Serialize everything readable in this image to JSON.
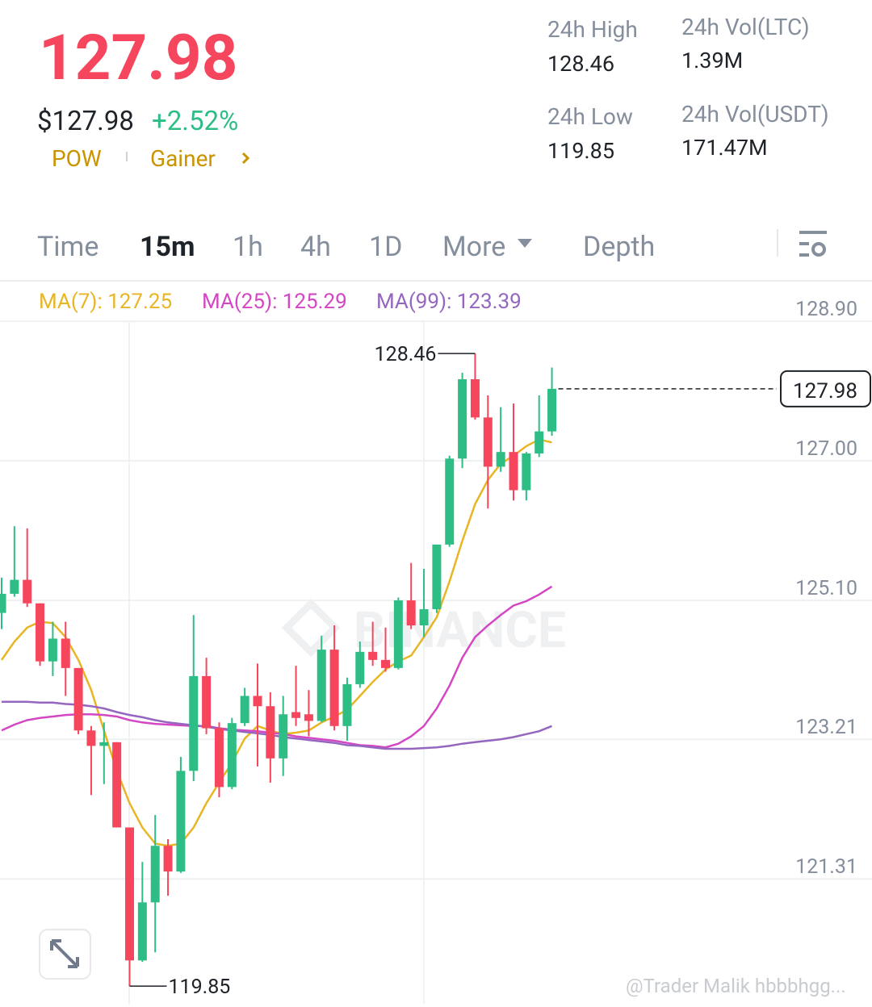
{
  "header": {
    "price": "127.98",
    "usd_price": "$127.98",
    "change": "+2.52%",
    "tags": [
      "POW",
      "Gainer"
    ],
    "stats": [
      {
        "label": "24h High",
        "value": "128.46"
      },
      {
        "label": "24h Vol(LTC)",
        "value": "1.39M"
      },
      {
        "label": "24h Low",
        "value": "119.85"
      },
      {
        "label": "24h Vol(USDT)",
        "value": "171.47M"
      }
    ]
  },
  "tabs": {
    "items": [
      "Time",
      "15m",
      "1h",
      "4h",
      "1D",
      "More",
      "Depth"
    ],
    "active": 1
  },
  "watermark": "BINANCE",
  "credit": "@Trader Malik hbbbhgg...",
  "chart_data": {
    "type": "candlestick",
    "up_color": "#2ebd85",
    "down_color": "#f6465d",
    "open": [
      124.93,
      125.19,
      125.38,
      125.06,
      124.27,
      124.58,
      124.18,
      123.33,
      123.12,
      123.17,
      122.01,
      120.2,
      120.99,
      121.76,
      121.41,
      122.78,
      124.07,
      123.36,
      122.56,
      123.43,
      123.8,
      123.66,
      122.95,
      123.58,
      123.55,
      123.46,
      124.43,
      123.39,
      123.96,
      124.4,
      124.29,
      124.18,
      125.1,
      124.76,
      124.98,
      125.86,
      127.03,
      128.11,
      127.59,
      126.92,
      127.12,
      126.6,
      127.1,
      127.4
    ],
    "high": [
      125.41,
      126.11,
      126.08,
      125.06,
      124.81,
      124.81,
      124.18,
      123.39,
      123.44,
      123.17,
      122.01,
      121.54,
      122.18,
      121.85,
      122.97,
      124.9,
      124.32,
      123.44,
      123.5,
      123.91,
      124.24,
      123.85,
      123.8,
      124.21,
      123.88,
      124.62,
      124.76,
      124.05,
      124.54,
      124.81,
      124.73,
      125.14,
      125.61,
      125.53,
      125.86,
      127.07,
      128.2,
      128.46,
      127.89,
      127.73,
      127.78,
      127.12,
      127.89,
      128.27
    ],
    "low": [
      124.71,
      125.15,
      125.01,
      124.21,
      124.07,
      123.8,
      123.28,
      122.45,
      122.6,
      122.01,
      119.85,
      120.18,
      120.31,
      121.08,
      121.39,
      122.64,
      123.28,
      122.42,
      122.53,
      123.39,
      122.84,
      122.62,
      122.71,
      123.39,
      123.25,
      123.44,
      123.33,
      123.19,
      123.91,
      124.21,
      124.13,
      124.16,
      124.71,
      124.6,
      124.93,
      125.83,
      126.9,
      127.56,
      126.35,
      126.85,
      126.46,
      126.46,
      127.05,
      127.34
    ],
    "close": [
      125.19,
      125.38,
      125.06,
      124.27,
      124.58,
      124.18,
      123.33,
      123.12,
      123.17,
      122.01,
      120.2,
      120.99,
      121.76,
      121.41,
      122.78,
      124.07,
      123.36,
      122.56,
      123.43,
      123.8,
      123.66,
      122.95,
      123.55,
      123.5,
      123.46,
      124.43,
      123.39,
      123.96,
      124.4,
      124.29,
      124.18,
      125.1,
      124.76,
      124.98,
      125.86,
      127.03,
      128.11,
      127.59,
      126.92,
      127.12,
      126.6,
      127.1,
      127.4,
      127.98
    ],
    "series": [
      {
        "name": "MA(7): 127.25",
        "color": "#e8b523",
        "values": [
          124.29,
          124.54,
          124.73,
          124.81,
          124.79,
          124.6,
          124.29,
          123.88,
          123.33,
          122.78,
          122.34,
          122.01,
          121.79,
          121.76,
          121.79,
          122.01,
          122.34,
          122.62,
          122.89,
          123.22,
          123.39,
          123.33,
          123.28,
          123.3,
          123.33,
          123.44,
          123.52,
          123.61,
          123.8,
          123.99,
          124.16,
          124.27,
          124.35,
          124.6,
          124.87,
          125.36,
          125.91,
          126.41,
          126.74,
          126.96,
          127.07,
          127.2,
          127.29,
          127.25
        ]
      },
      {
        "name": "MA(25): 125.29",
        "color": "#d447c4",
        "values": [
          123.33,
          123.41,
          123.47,
          123.5,
          123.52,
          123.54,
          123.55,
          123.55,
          123.54,
          123.52,
          123.47,
          123.44,
          123.42,
          123.41,
          123.4,
          123.39,
          123.39,
          123.36,
          123.34,
          123.33,
          123.32,
          123.3,
          123.28,
          123.25,
          123.23,
          123.21,
          123.19,
          123.16,
          123.13,
          123.12,
          123.1,
          123.15,
          123.25,
          123.39,
          123.63,
          123.94,
          124.32,
          124.6,
          124.76,
          124.9,
          125.03,
          125.09,
          125.18,
          125.29
        ]
      },
      {
        "name": "MA(99): 123.39",
        "color": "#9466bf",
        "values": [
          123.72,
          123.72,
          123.72,
          123.71,
          123.71,
          123.69,
          123.68,
          123.66,
          123.63,
          123.58,
          123.54,
          123.51,
          123.47,
          123.44,
          123.42,
          123.4,
          123.38,
          123.35,
          123.33,
          123.31,
          123.29,
          123.27,
          123.24,
          123.22,
          123.2,
          123.18,
          123.16,
          123.13,
          123.12,
          123.1,
          123.08,
          123.08,
          123.08,
          123.09,
          123.1,
          123.12,
          123.15,
          123.17,
          123.19,
          123.21,
          123.24,
          123.28,
          123.32,
          123.39
        ]
      }
    ],
    "ylim": [
      119.61,
      129.45
    ],
    "yticks": [
      {
        "value": 128.9,
        "label": "128.90"
      },
      {
        "value": 127.0,
        "label": "127.00"
      },
      {
        "value": 125.1,
        "label": "125.10"
      },
      123.21,
      121.31
    ],
    "grid": true,
    "current_price": 127.98,
    "high_marker": 128.46,
    "low_marker": 119.85
  }
}
